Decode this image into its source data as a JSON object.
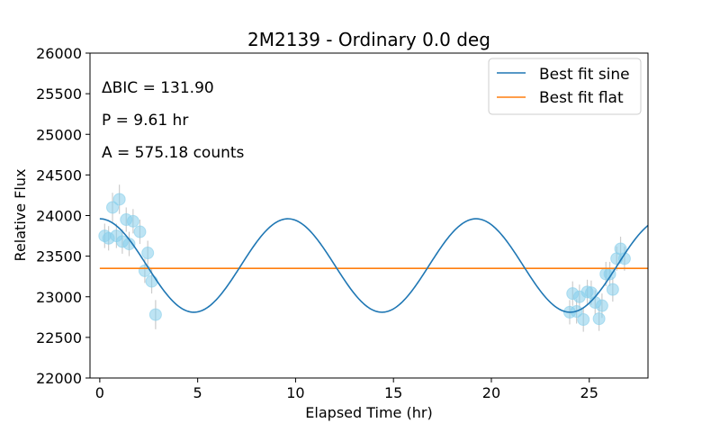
{
  "chart_data": {
    "type": "scatter",
    "title": "2M2139 - Ordinary 0.0 deg",
    "xlabel": "Elapsed Time (hr)",
    "ylabel": "Relative Flux",
    "xlim": [
      -0.5,
      28
    ],
    "ylim": [
      22000,
      26000
    ],
    "xticks": [
      0,
      5,
      10,
      15,
      20,
      25
    ],
    "xtick_labels": [
      "0",
      "5",
      "10",
      "15",
      "20",
      "25"
    ],
    "yticks": [
      22000,
      22500,
      23000,
      23500,
      24000,
      24500,
      25000,
      25500,
      26000
    ],
    "ytick_labels": [
      "22000",
      "22500",
      "23000",
      "23500",
      "24000",
      "24500",
      "25000",
      "25500",
      "26000"
    ],
    "annotations": [
      "ΔBIC = 131.90",
      "P = 9.61 hr",
      "A = 575.18 counts"
    ],
    "legend": {
      "position": "top-right",
      "entries": [
        "Best fit sine",
        "Best fit flat"
      ]
    },
    "series": [
      {
        "name": "Best fit sine",
        "kind": "line",
        "color": "#1f77b4",
        "period": 9.61,
        "amplitude": 575.18,
        "offset": 23385,
        "peak_time": 0.0
      },
      {
        "name": "Best fit flat",
        "kind": "line",
        "color": "#ff7f0e",
        "value": 23350
      },
      {
        "kind": "errorbar-scatter",
        "color": "#87ceeb",
        "error_color": "#cccccc",
        "points": [
          {
            "x": 0.25,
            "y": 23750,
            "err": 150
          },
          {
            "x": 0.45,
            "y": 23720,
            "err": 150
          },
          {
            "x": 0.65,
            "y": 24100,
            "err": 180
          },
          {
            "x": 0.85,
            "y": 23750,
            "err": 150
          },
          {
            "x": 1.0,
            "y": 24200,
            "err": 180
          },
          {
            "x": 1.15,
            "y": 23680,
            "err": 150
          },
          {
            "x": 1.35,
            "y": 23950,
            "err": 150
          },
          {
            "x": 1.5,
            "y": 23650,
            "err": 150
          },
          {
            "x": 1.7,
            "y": 23930,
            "err": 150
          },
          {
            "x": 2.05,
            "y": 23800,
            "err": 150
          },
          {
            "x": 2.3,
            "y": 23320,
            "err": 150
          },
          {
            "x": 2.45,
            "y": 23540,
            "err": 150
          },
          {
            "x": 2.65,
            "y": 23190,
            "err": 150
          },
          {
            "x": 2.85,
            "y": 22780,
            "err": 180
          },
          {
            "x": 24.0,
            "y": 22810,
            "err": 150
          },
          {
            "x": 24.15,
            "y": 23040,
            "err": 150
          },
          {
            "x": 24.35,
            "y": 22820,
            "err": 150
          },
          {
            "x": 24.5,
            "y": 23000,
            "err": 150
          },
          {
            "x": 24.7,
            "y": 22720,
            "err": 150
          },
          {
            "x": 24.9,
            "y": 23060,
            "err": 150
          },
          {
            "x": 25.1,
            "y": 23050,
            "err": 150
          },
          {
            "x": 25.3,
            "y": 22930,
            "err": 150
          },
          {
            "x": 25.5,
            "y": 22730,
            "err": 150
          },
          {
            "x": 25.65,
            "y": 22890,
            "err": 150
          },
          {
            "x": 25.85,
            "y": 23280,
            "err": 150
          },
          {
            "x": 26.05,
            "y": 23280,
            "err": 150
          },
          {
            "x": 26.2,
            "y": 23090,
            "err": 150
          },
          {
            "x": 26.4,
            "y": 23470,
            "err": 150
          },
          {
            "x": 26.6,
            "y": 23590,
            "err": 150
          },
          {
            "x": 26.8,
            "y": 23470,
            "err": 150
          }
        ]
      }
    ]
  }
}
